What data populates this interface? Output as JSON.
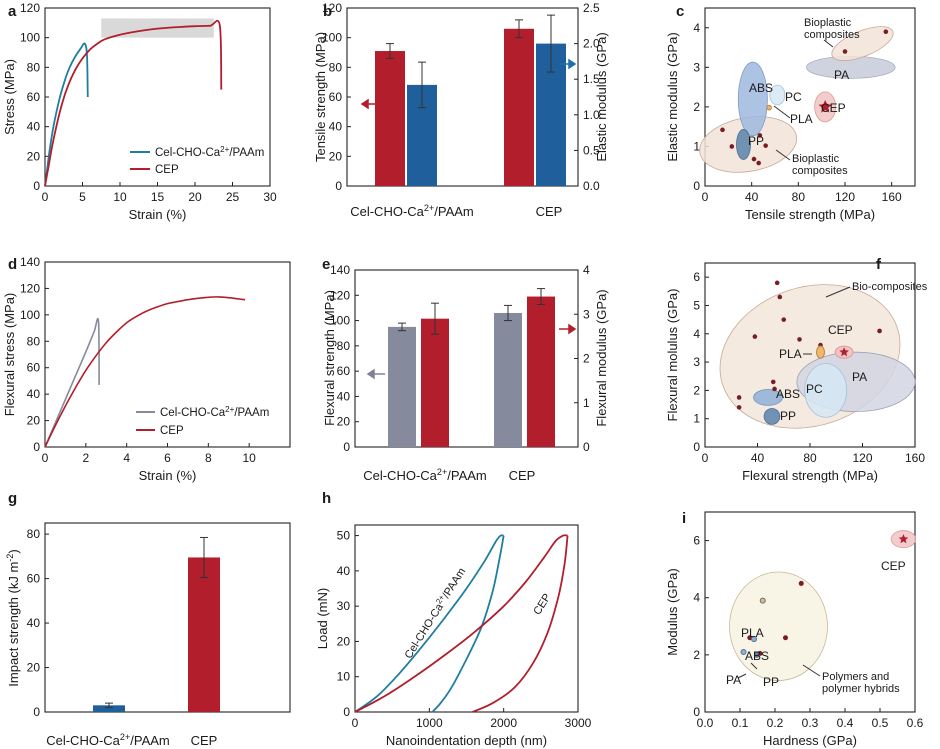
{
  "figure": {
    "panel_labels": [
      "a",
      "b",
      "c",
      "d",
      "e",
      "f",
      "g",
      "h",
      "i"
    ]
  },
  "colors": {
    "red": "#b21e2c",
    "blue": "#1f5f9c",
    "teal": "#1f7ea0",
    "gray": "#858a9c",
    "arrow_red": "#b21e2c",
    "arrow_blue": "#1f6fad",
    "arrow_gray": "#7d8296"
  },
  "chart_data": [
    {
      "id": "a",
      "type": "line",
      "xlabel": "Strain (%)",
      "ylabel": "Stress (MPa)",
      "xlim": [
        0,
        30
      ],
      "ylim": [
        0,
        120
      ],
      "xticks": [
        0,
        5,
        10,
        15,
        20,
        25,
        30
      ],
      "yticks": [
        0,
        20,
        40,
        60,
        80,
        100,
        120
      ],
      "shaded_region": {
        "x": [
          7.5,
          22.5
        ],
        "y": [
          100,
          113
        ]
      },
      "series": [
        {
          "name": "Cel-CHO-Ca²⁺/PAAm",
          "color": "teal",
          "points": [
            [
              0,
              0
            ],
            [
              0.3,
              12
            ],
            [
              0.7,
              27
            ],
            [
              1.2,
              42
            ],
            [
              1.8,
              56
            ],
            [
              2.5,
              69
            ],
            [
              3.2,
              79
            ],
            [
              4,
              87
            ],
            [
              4.8,
              93
            ],
            [
              5.3,
              96
            ],
            [
              5.6,
              88
            ],
            [
              5.7,
              60
            ]
          ]
        },
        {
          "name": "CEP",
          "color": "red",
          "points": [
            [
              0,
              0
            ],
            [
              0.5,
              14
            ],
            [
              1,
              28
            ],
            [
              1.6,
              42
            ],
            [
              2.3,
              56
            ],
            [
              3.1,
              68
            ],
            [
              4,
              78
            ],
            [
              5,
              86
            ],
            [
              6,
              92
            ],
            [
              7,
              96
            ],
            [
              8,
              99
            ],
            [
              10,
              102
            ],
            [
              12,
              104
            ],
            [
              14,
              105.5
            ],
            [
              16,
              106.5
            ],
            [
              18,
              107.2
            ],
            [
              20,
              107.7
            ],
            [
              22,
              108
            ],
            [
              23.3,
              108.3
            ],
            [
              23.5,
              65
            ]
          ]
        }
      ]
    },
    {
      "id": "b",
      "type": "bar",
      "categories": [
        "Cel-CHO-Ca2+/PAAm",
        "CEP"
      ],
      "ylabel": "Tensile strength (MPa)",
      "ylabel_right": "Elastic modulus (GPa)",
      "ylim": [
        0,
        120
      ],
      "ylim_right": [
        0,
        2.5
      ],
      "yticks": [
        0,
        20,
        40,
        60,
        80,
        100,
        120
      ],
      "yticks_right": [
        "0.0",
        "0.5",
        "1.0",
        "1.5",
        "2.0",
        "2.5"
      ],
      "series": [
        {
          "axis": "left",
          "color": "red",
          "values": [
            91,
            106
          ],
          "errors": [
            5,
            6
          ]
        },
        {
          "axis": "right",
          "color": "blue",
          "values": [
            1.42,
            2.0
          ],
          "errors": [
            0.32,
            0.4
          ]
        }
      ]
    },
    {
      "id": "c",
      "type": "scatter",
      "xlabel": "Tensile strength (MPa)",
      "ylabel": "Elastic modulus (GPa)",
      "xlim": [
        0,
        180
      ],
      "ylim": [
        0,
        4.5
      ],
      "xticks": [
        0,
        40,
        80,
        120,
        160
      ],
      "yticks": [
        0,
        1,
        2,
        3,
        4
      ],
      "regions": [
        {
          "label": "Bioplastic composites",
          "role": "bio_low",
          "cx": 37,
          "cy": 1.05,
          "rx": 42,
          "ry": 0.68,
          "fill": "#f2e4d8",
          "stroke": "#c9a896",
          "rot": -10
        },
        {
          "label": "ABS",
          "cx": 41,
          "cy": 2.2,
          "rx": 12.5,
          "ry": 0.93,
          "fill": "#9db9df",
          "stroke": "#7f9cc6"
        },
        {
          "label": "PP",
          "cx": 33,
          "cy": 1.05,
          "rx": 6,
          "ry": 0.38,
          "fill": "#5b83ad",
          "stroke": "#4c6f96"
        },
        {
          "label": "PC",
          "cx": 62,
          "cy": 2.3,
          "rx": 6.5,
          "ry": 0.25,
          "fill": "#d6e7f5",
          "stroke": "#a4c2db"
        },
        {
          "label": "PA",
          "cx": 125,
          "cy": 3.0,
          "rx": 38,
          "ry": 0.28,
          "fill": "#c7cbda",
          "stroke": "#a7acbf"
        },
        {
          "label": "Bioplastic composites",
          "role": "bio_high",
          "cx": 135,
          "cy": 3.6,
          "rx": 28,
          "ry": 0.32,
          "fill": "#f2e4d8",
          "stroke": "#c9a896",
          "rot": -22
        },
        {
          "label": "CEP",
          "cx": 103,
          "cy": 2.0,
          "rx": 9,
          "ry": 0.38,
          "fill": "#f1c3c3",
          "stroke": "#e09a9a"
        }
      ],
      "points": [
        [
          15,
          1.42
        ],
        [
          23,
          1.0
        ],
        [
          47,
          1.28
        ],
        [
          42,
          0.68
        ],
        [
          46,
          0.58
        ],
        [
          52,
          1.02
        ],
        [
          120,
          3.4
        ],
        [
          155,
          3.9
        ]
      ],
      "pla_point": [
        55,
        1.98
      ],
      "cep_star": [
        103,
        2.0
      ],
      "labels": {
        "bio_top": "Bioplastic\ncomposites",
        "bio_bottom": "Bioplastic\ncomposites",
        "PLA": "PLA",
        "CEP": "CEP",
        "PA": "PA",
        "PC": "PC",
        "ABS": "ABS",
        "PP": "PP"
      }
    },
    {
      "id": "d",
      "type": "line",
      "xlabel": "Strain (%)",
      "ylabel": "Flexural stress (MPa)",
      "xlim": [
        0,
        12
      ],
      "ylim": [
        0,
        140
      ],
      "xticks": [
        0,
        2,
        4,
        6,
        8,
        10
      ],
      "yticks": [
        0,
        20,
        40,
        60,
        80,
        100,
        120,
        140
      ],
      "series": [
        {
          "name": "Cel-CHO-Ca²⁺/PAAm",
          "color": "gray",
          "points": [
            [
              0,
              0
            ],
            [
              0.5,
              18
            ],
            [
              1,
              36
            ],
            [
              1.5,
              54
            ],
            [
              2,
              72
            ],
            [
              2.4,
              87
            ],
            [
              2.62,
              95
            ],
            [
              2.65,
              47
            ]
          ]
        },
        {
          "name": "CEP",
          "color": "red",
          "points": [
            [
              0,
              0
            ],
            [
              0.5,
              16
            ],
            [
              1,
              31
            ],
            [
              1.5,
              45
            ],
            [
              2,
              58
            ],
            [
              2.5,
              69
            ],
            [
              3,
              79
            ],
            [
              3.5,
              87
            ],
            [
              4,
              94
            ],
            [
              4.5,
              99
            ],
            [
              5,
              103
            ],
            [
              5.5,
              106
            ],
            [
              6,
              108.5
            ],
            [
              6.5,
              110
            ],
            [
              7,
              111.5
            ],
            [
              7.5,
              112.5
            ],
            [
              8,
              113.3
            ],
            [
              8.5,
              113.6
            ],
            [
              9,
              113
            ],
            [
              9.5,
              112
            ],
            [
              9.8,
              111.5
            ]
          ]
        }
      ]
    },
    {
      "id": "e",
      "type": "bar",
      "categories": [
        "Cel-CHO-Ca²⁺/PAAm",
        "CEP"
      ],
      "ylabel": "Flexural strength (MPa)",
      "ylabel_right": "Flexural modulus (GPa)",
      "ylim": [
        0,
        140
      ],
      "ylim_right": [
        0,
        4
      ],
      "yticks": [
        0,
        20,
        40,
        60,
        80,
        100,
        120,
        140
      ],
      "yticks_right": [
        "0",
        "1",
        "2",
        "3",
        "4"
      ],
      "series": [
        {
          "axis": "left",
          "color": "gray",
          "values": [
            95,
            106
          ],
          "errors": [
            3,
            6
          ]
        },
        {
          "axis": "right",
          "color": "red",
          "values": [
            2.9,
            3.4
          ],
          "errors": [
            0.35,
            0.18
          ]
        }
      ]
    },
    {
      "id": "f",
      "type": "scatter",
      "xlabel": "Flexural strength (MPa)",
      "ylabel": "Flexural molulus (GPa)",
      "xlim": [
        0,
        160
      ],
      "ylim": [
        0,
        6.5
      ],
      "xticks": [
        0,
        40,
        80,
        120,
        160
      ],
      "yticks": [
        0,
        1,
        2,
        3,
        4,
        5,
        6
      ],
      "regions": [
        {
          "label": "Bio-composites",
          "cx": 80,
          "cy": 3.2,
          "rx": 70,
          "ry": 2.45,
          "fill": "#f3e6da",
          "stroke": "#c7a998",
          "rot": -18
        },
        {
          "label": "PA",
          "cx": 115,
          "cy": 2.3,
          "rx": 45,
          "ry": 1.05,
          "fill": "#d2d5e2",
          "stroke": "#9da2b8"
        },
        {
          "label": "PC",
          "cx": 92,
          "cy": 2.0,
          "rx": 16,
          "ry": 0.95,
          "fill": "#d6e7f5",
          "stroke": "#a4c2db"
        },
        {
          "label": "ABS",
          "cx": 48,
          "cy": 1.75,
          "rx": 11,
          "ry": 0.28,
          "fill": "#8fb0d8",
          "stroke": "#6f91bb"
        },
        {
          "label": "PP",
          "cx": 51,
          "cy": 1.08,
          "rx": 6,
          "ry": 0.28,
          "fill": "#5b83ad",
          "stroke": "#4c6f96"
        }
      ],
      "points": [
        [
          26,
          1.4
        ],
        [
          26,
          1.75
        ],
        [
          38,
          3.9
        ],
        [
          52,
          2.3
        ],
        [
          53,
          2.05
        ],
        [
          55,
          5.8
        ],
        [
          57,
          5.3
        ],
        [
          60,
          4.5
        ],
        [
          72,
          3.8
        ],
        [
          88,
          3.6
        ],
        [
          133,
          4.1
        ]
      ],
      "pla_point": [
        88,
        3.35
      ],
      "cep_star": [
        106,
        3.35
      ],
      "labels": {
        "bio": "Bio-composites",
        "CEP": "CEP",
        "PLA": "PLA",
        "PA": "PA",
        "PC": "PC",
        "ABS": "ABS",
        "PP": "PP"
      }
    },
    {
      "id": "g",
      "type": "bar",
      "categories": [
        "Cel-CHO-Ca2+/PAAm",
        "CEP"
      ],
      "ylabel": "Impact strength (kJ m-2)",
      "ylim": [
        0,
        85
      ],
      "yticks": [
        0,
        20,
        40,
        60,
        80
      ],
      "series": [
        {
          "colors": [
            "blue",
            "red"
          ],
          "values": [
            3,
            69.5
          ],
          "errors": [
            1,
            9
          ]
        }
      ]
    },
    {
      "id": "h",
      "type": "line",
      "xlabel": "Nanoindentation depth (nm)",
      "ylabel": "Load (mN)",
      "xlim": [
        0,
        3000
      ],
      "ylim": [
        0,
        53
      ],
      "xticks": [
        0,
        1000,
        2000,
        3000
      ],
      "yticks": [
        0,
        10,
        20,
        30,
        40,
        50
      ],
      "series": [
        {
          "name": "Cel-CHO-Ca2+/PAAm",
          "color": "teal",
          "loading": [
            [
              0,
              0
            ],
            [
              300,
              4.5
            ],
            [
              600,
              11
            ],
            [
              900,
              18.5
            ],
            [
              1200,
              26.5
            ],
            [
              1500,
              35
            ],
            [
              1750,
              43
            ],
            [
              1900,
              48.5
            ],
            [
              1960,
              50
            ],
            [
              2000,
              50
            ]
          ],
          "unloading": [
            [
              2000,
              50
            ],
            [
              1940,
              43
            ],
            [
              1850,
              34
            ],
            [
              1700,
              24
            ],
            [
              1500,
              15
            ],
            [
              1300,
              7
            ],
            [
              1150,
              2.5
            ],
            [
              1040,
              0
            ]
          ]
        },
        {
          "name": "CEP",
          "color": "red",
          "loading": [
            [
              0,
              0
            ],
            [
              400,
              4.5
            ],
            [
              800,
              10
            ],
            [
              1200,
              16
            ],
            [
              1600,
              22.5
            ],
            [
              2000,
              30
            ],
            [
              2300,
              37
            ],
            [
              2550,
              44
            ],
            [
              2700,
              48.5
            ],
            [
              2800,
              50
            ],
            [
              2860,
              50
            ]
          ],
          "unloading": [
            [
              2860,
              50
            ],
            [
              2820,
              42
            ],
            [
              2740,
              33
            ],
            [
              2600,
              23
            ],
            [
              2400,
              14
            ],
            [
              2150,
              7
            ],
            [
              1850,
              2.5
            ],
            [
              1580,
              0
            ]
          ]
        }
      ]
    },
    {
      "id": "i",
      "type": "scatter",
      "xlabel": "Hardness (GPa)",
      "ylabel": "Modulus (GPa)",
      "xlim": [
        0,
        0.6
      ],
      "ylim": [
        0,
        7
      ],
      "xticks": [
        "0.0",
        "0.1",
        "0.2",
        "0.3",
        "0.4",
        "0.5",
        "0.6"
      ],
      "yticks": [
        0,
        2,
        4,
        6
      ],
      "regions": [
        {
          "label": "Polymers and polymer hybrids",
          "cx": 0.21,
          "cy": 3.0,
          "rx": 0.14,
          "ry": 1.9,
          "fill": "#f7f2e2",
          "stroke": "#c8b89a",
          "rot": 0
        },
        {
          "label": "CEP",
          "cx": 0.567,
          "cy": 6.05,
          "rx": 0.035,
          "ry": 0.3,
          "fill": "#f1c3c3",
          "stroke": "#e09a9a"
        }
      ],
      "points": [
        [
          0.128,
          2.6
        ],
        [
          0.157,
          2.05
        ],
        [
          0.23,
          2.6
        ],
        [
          0.275,
          4.5
        ]
      ],
      "material_points": [
        {
          "label": "PLA",
          "x": 0.165,
          "y": 3.9,
          "color": "#f0b86e"
        },
        {
          "label": "ABS",
          "x": 0.14,
          "y": 2.55,
          "color": "#8fb0d8"
        },
        {
          "label": "PA",
          "x": 0.11,
          "y": 2.1,
          "color": "#8fb0d8"
        },
        {
          "label": "PP",
          "x": 0.148,
          "y": 2.0,
          "color": "#5b83ad"
        }
      ],
      "cep_star": [
        0.567,
        6.05
      ],
      "labels": {
        "CEP": "CEP",
        "PLA": "PLA",
        "ABS": "ABS",
        "PA": "PA",
        "PP": "PP",
        "group": "Polymers and\npolymer hybrids"
      }
    }
  ]
}
